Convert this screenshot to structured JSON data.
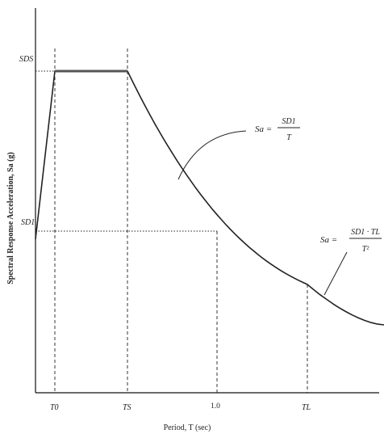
{
  "figure": {
    "y_axis_label": "Spectral Response Acceleration, Sa (g)",
    "x_axis_label": "Period, T (sec)",
    "y_ticks": {
      "sds": "SDS",
      "sd1": "SD1"
    },
    "x_ticks": {
      "t0": "T0",
      "ts": "TS",
      "one": "1.0",
      "tl": "TL"
    },
    "eq1": {
      "lhs": "Sa =",
      "num": "SD1",
      "den": "T"
    },
    "eq2": {
      "lhs": "Sa =",
      "num": "SD1 · TL",
      "den": "T²"
    }
  },
  "chart_data": {
    "type": "line",
    "title": "",
    "xlabel": "Period, T (sec)",
    "ylabel": "Spectral Response Acceleration, Sa (g)",
    "grid": false,
    "series": [
      {
        "segments": [
          {
            "range": "0 to T0",
            "curve": "linear rise to SDS"
          },
          {
            "range": "T0 to TS",
            "curve": "Sa = SDS (flat plateau)"
          },
          {
            "range": "TS to TL",
            "curve": "Sa = SD1 / T"
          },
          {
            "range": "T > TL",
            "curve": "Sa = SD1·TL / T²"
          }
        ]
      }
    ],
    "reference_lines": [
      {
        "at": "SDS",
        "style": "dotted"
      },
      {
        "at": "SD1",
        "style": "dotted",
        "intersects": "T = 1.0"
      },
      {
        "at": "T0",
        "style": "dashed"
      },
      {
        "at": "TS",
        "style": "dashed"
      },
      {
        "at": "1.0",
        "style": "dashed"
      },
      {
        "at": "TL",
        "style": "dashed"
      }
    ]
  }
}
